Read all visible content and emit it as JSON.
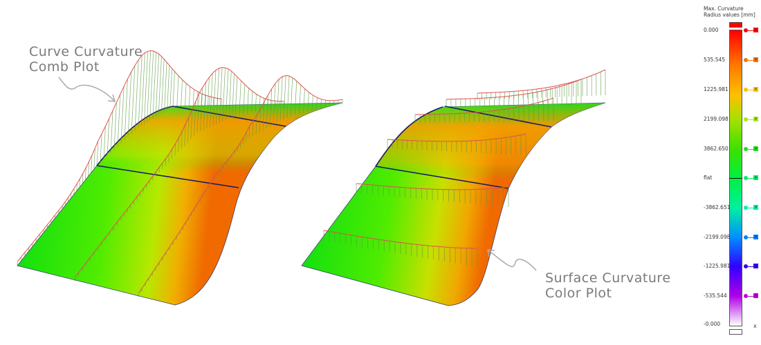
{
  "annotations": {
    "comb": [
      "Curve Curvature",
      "Comb Plot"
    ],
    "color": [
      "Surface Curvature",
      "Color Plot"
    ]
  },
  "legend": {
    "title": [
      "Max. Curvature",
      "Radius values [mm]"
    ],
    "stops": [
      {
        "label": "0.000",
        "color": "#ff0000"
      },
      {
        "label": "535.545",
        "color": "#ff7000"
      },
      {
        "label": "1225.981",
        "color": "#ffc000"
      },
      {
        "label": "2199.098",
        "color": "#a0f000"
      },
      {
        "label": "3862.650",
        "color": "#20e020"
      },
      {
        "label": "flat",
        "color": "#00f060"
      },
      {
        "label": "-3862.651",
        "color": "#00f0b0"
      },
      {
        "label": "-2199.098",
        "color": "#0080ff"
      },
      {
        "label": "-1225.981",
        "color": "#3000ff"
      },
      {
        "label": "-535.544",
        "color": "#c000e0"
      },
      {
        "label": "-0.000",
        "color": "#ffffff"
      }
    ],
    "end_marker": "x",
    "cap_top_color": "#ff0000",
    "cap_bottom_color": "#ffffff"
  },
  "colors": {
    "green": "#10e010",
    "orange": "#f07000",
    "comb_envelope": "#e05050",
    "comb_hatch": "#5a9a40",
    "edge": "#1a1a60"
  }
}
